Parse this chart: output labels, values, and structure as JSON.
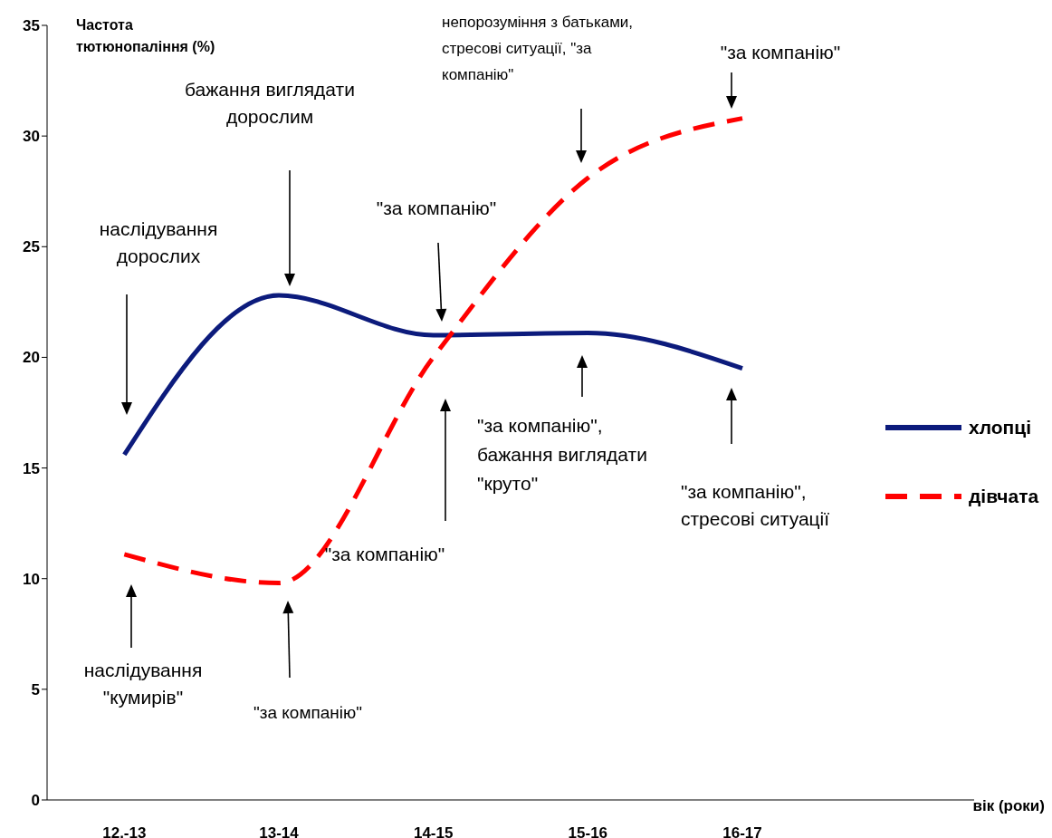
{
  "chart_data": {
    "type": "line",
    "ylabel": "Частота тютюнопаління (%)",
    "xlabel": "вік (роки)",
    "categories": [
      "12.-13",
      "13-14",
      "14-15",
      "15-16",
      "16-17",
      null
    ],
    "series": [
      {
        "name": "хлопці",
        "color": "#0c1b7c",
        "line_style": "solid",
        "values": [
          15.6,
          22.8,
          21.0,
          21.1,
          19.5,
          null
        ]
      },
      {
        "name": "дівчата",
        "color": "#ff0000",
        "line_style": "dashed",
        "values": [
          11.1,
          9.8,
          20.0,
          28.1,
          30.8,
          null
        ]
      }
    ],
    "ylim": [
      0,
      35
    ],
    "yticks": [
      0,
      5,
      10,
      15,
      20,
      25,
      30,
      35
    ],
    "grid": false,
    "legend": "right",
    "marker": "none",
    "annotations": [
      "наслідування\nдорослих",
      "бажання виглядати\nдорослим",
      "\"за компанію\"",
      "\"за компанію\",\nбажання виглядати\n\"круто\"",
      "\"за компанію\",\nстресові ситуації",
      "наслідування\n\"кумирів\"",
      "\"за компанію\"",
      "\"за компанію\"",
      "непорозуміння з батьками,\nстресові ситуації, \"за\nкомпанію\"",
      "\"за компанію\""
    ]
  }
}
